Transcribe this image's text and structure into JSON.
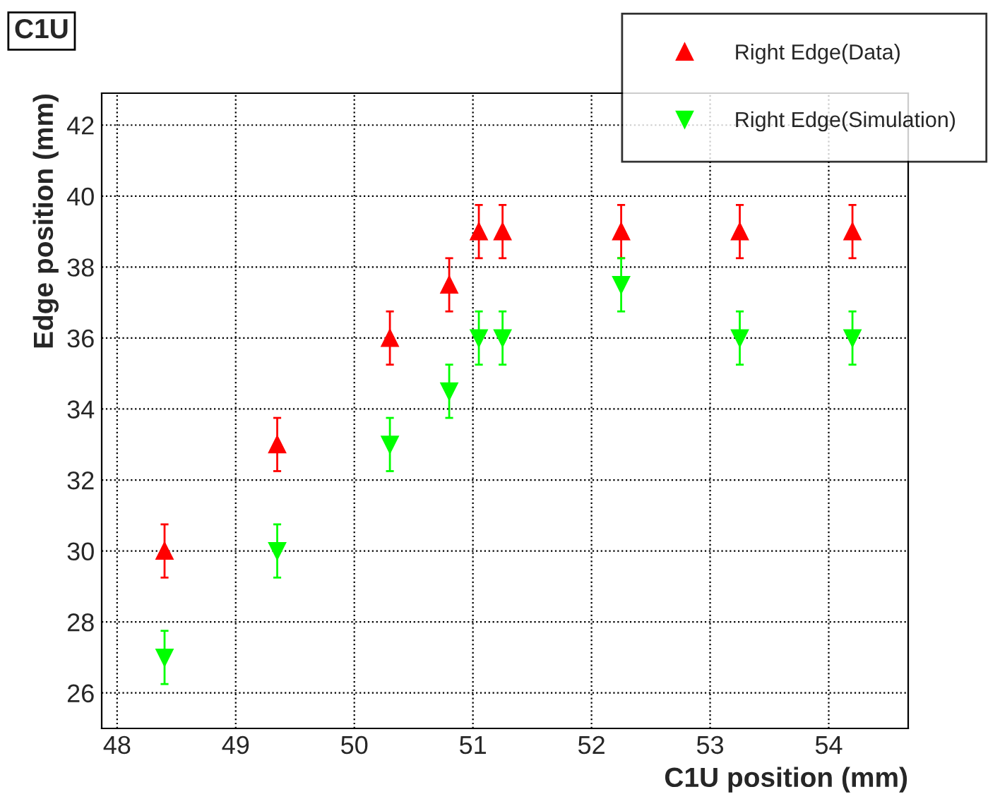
{
  "chart_data": {
    "type": "scatter",
    "title": "C1U",
    "xlabel": "C1U position (mm)",
    "ylabel": "Edge position (mm)",
    "x": [
      48.4,
      49.35,
      50.3,
      50.8,
      51.05,
      51.25,
      52.25,
      53.25,
      54.2
    ],
    "series": [
      {
        "name": "Right Edge(Data)",
        "color": "#ff0000",
        "marker": "triangle",
        "values": [
          30,
          33,
          36,
          37.5,
          39,
          39,
          39,
          39,
          39
        ],
        "errors": [
          0.75,
          0.75,
          0.75,
          0.75,
          0.75,
          0.75,
          0.75,
          0.75,
          0.75
        ]
      },
      {
        "name": "Right Edge(Simulation)",
        "color": "#00ff00",
        "marker": "triangle_down",
        "values": [
          27,
          30,
          33,
          34.5,
          36,
          36,
          37.5,
          36,
          36
        ],
        "errors": [
          0.75,
          0.75,
          0.75,
          0.75,
          0.75,
          0.75,
          0.75,
          0.75,
          0.75
        ]
      }
    ],
    "xlim": [
      47.87,
      54.67
    ],
    "xticks": [
      48,
      49,
      50,
      51,
      52,
      53,
      54
    ],
    "ylim": [
      25,
      42.9
    ],
    "yticks": [
      26,
      28,
      30,
      32,
      34,
      36,
      38,
      40,
      42
    ],
    "grid": true,
    "legend": "top right"
  }
}
